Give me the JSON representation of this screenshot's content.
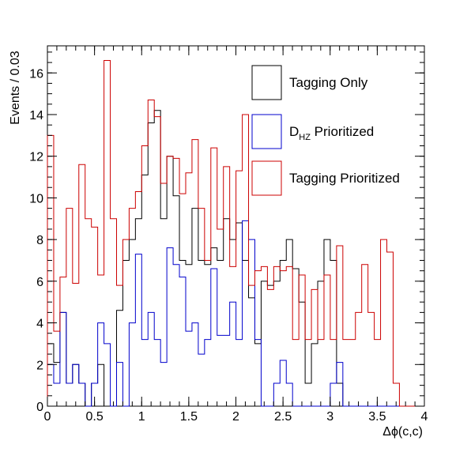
{
  "chart_data": {
    "type": "histogram",
    "xlabel": "Δϕ(c,c)",
    "ylabel": "Events / 0.03",
    "xlim": [
      0,
      4
    ],
    "ylim": [
      0,
      17.3
    ],
    "bin_width": 0.0667,
    "x_tick_labels": [
      "0",
      "0.5",
      "1",
      "1.5",
      "2",
      "2.5",
      "3",
      "3.5",
      "4"
    ],
    "y_tick_labels": [
      "0",
      "2",
      "4",
      "6",
      "8",
      "10",
      "12",
      "14",
      "16"
    ],
    "legend_position": "top-right",
    "series": [
      {
        "name": "Tagging Only",
        "label_main": "Tagging Only",
        "label_sub": "",
        "label_tail": "",
        "color": "#000000",
        "values": [
          3.0,
          2.1,
          4.5,
          1.1,
          2.0,
          1.1,
          0.0,
          1.1,
          2.0,
          0.0,
          0.0,
          4.6,
          7.0,
          8.0,
          9.0,
          11.1,
          13.6,
          14.2,
          9.0,
          12.0,
          10.1,
          7.0,
          6.8,
          9.5,
          7.0,
          6.8,
          7.6,
          7.0,
          9.0,
          8.0,
          8.8,
          7.0,
          5.2,
          3.0,
          6.0,
          5.8,
          6.0,
          7.0,
          8.0,
          6.6,
          5.0,
          1.1,
          3.0,
          6.0,
          8.0,
          7.0,
          1.1,
          0.0,
          0.0,
          0.0,
          0.0,
          0.0,
          0.0,
          0.0,
          0.0,
          0.0,
          0.0,
          0.0,
          0.0,
          0.0
        ]
      },
      {
        "name": "D_HZ Prioritized",
        "label_main": "D",
        "label_sub": "HZ",
        "label_tail": " Prioritized",
        "color": "#0000cc",
        "values": [
          2.0,
          1.1,
          4.5,
          1.1,
          2.0,
          1.1,
          0.0,
          1.1,
          4.0,
          3.0,
          0.0,
          2.1,
          0.0,
          4.0,
          7.3,
          3.2,
          4.5,
          3.2,
          2.1,
          7.6,
          6.8,
          6.2,
          3.6,
          4.0,
          2.5,
          3.2,
          6.6,
          3.4,
          3.4,
          5.0,
          3.2,
          8.9,
          8.0,
          3.2,
          0.0,
          0.0,
          1.1,
          2.2,
          1.1,
          0.0,
          0.0,
          0.0,
          0.0,
          0.0,
          0.0,
          1.1,
          2.1,
          0.0,
          0.0,
          0.0,
          0.0,
          0.0,
          0.0,
          0.0,
          0.0,
          0.0,
          0.0,
          0.0,
          0.0,
          0.0
        ]
      },
      {
        "name": "Tagging Prioritized",
        "label_main": "Tagging Prioritized",
        "label_sub": "",
        "label_tail": "",
        "color": "#cc0000",
        "values": [
          13.0,
          3.6,
          6.2,
          9.5,
          5.9,
          11.6,
          9.0,
          8.6,
          6.3,
          16.6,
          9.0,
          5.8,
          8.0,
          9.5,
          10.3,
          12.5,
          14.7,
          13.9,
          10.7,
          12.0,
          11.9,
          10.2,
          11.2,
          12.8,
          9.5,
          7.0,
          12.4,
          8.5,
          11.5,
          6.7,
          11.3,
          14.0,
          5.8,
          6.5,
          6.7,
          5.6,
          6.7,
          6.5,
          6.7,
          3.2,
          6.3,
          3.2,
          5.6,
          3.2,
          6.3,
          3.2,
          7.7,
          3.2,
          3.2,
          4.5,
          6.8,
          4.5,
          3.2,
          8.0,
          7.4,
          1.1,
          0.0,
          0.0,
          0.0,
          0.0
        ]
      }
    ]
  }
}
